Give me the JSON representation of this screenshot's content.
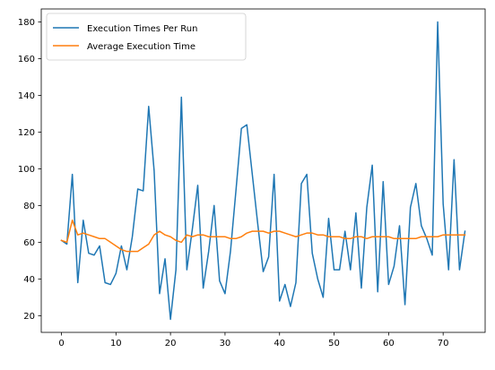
{
  "chart_data": {
    "type": "line",
    "title": "",
    "xlabel": "",
    "ylabel": "",
    "xlim": [
      -3.7,
      77.7
    ],
    "ylim": [
      10.9,
      187.1
    ],
    "xticks": [
      0,
      10,
      20,
      30,
      40,
      50,
      60,
      70
    ],
    "yticks": [
      20,
      40,
      60,
      80,
      100,
      120,
      140,
      160,
      180
    ],
    "grid": false,
    "legend": "top-left",
    "x": [
      0,
      1,
      2,
      3,
      4,
      5,
      6,
      7,
      8,
      9,
      10,
      11,
      12,
      13,
      14,
      15,
      16,
      17,
      18,
      19,
      20,
      21,
      22,
      23,
      24,
      25,
      26,
      27,
      28,
      29,
      30,
      31,
      32,
      33,
      34,
      35,
      36,
      37,
      38,
      39,
      40,
      41,
      42,
      43,
      44,
      45,
      46,
      47,
      48,
      49,
      50,
      51,
      52,
      53,
      54,
      55,
      56,
      57,
      58,
      59,
      60,
      61,
      62,
      63,
      64,
      65,
      66,
      67,
      68,
      69,
      70,
      71,
      72,
      73,
      74
    ],
    "series": [
      {
        "name": "Execution Times Per Run",
        "color": "#1f77b4",
        "values": [
          61,
          59,
          97,
          38,
          72,
          54,
          53,
          58,
          38,
          37,
          43,
          58,
          45,
          63,
          89,
          88,
          134,
          99,
          32,
          51,
          18,
          45,
          139,
          45,
          67,
          91,
          35,
          55,
          80,
          39,
          32,
          55,
          88,
          122,
          124,
          97,
          70,
          44,
          52,
          97,
          28,
          37,
          25,
          38,
          92,
          97,
          54,
          40,
          30,
          73,
          45,
          45,
          66,
          45,
          76,
          35,
          79,
          102,
          33,
          93,
          37,
          47,
          69,
          26,
          79,
          92,
          69,
          62,
          53,
          180,
          81,
          45,
          105,
          45,
          66
        ]
      },
      {
        "name": "Average Execution Time",
        "color": "#ff7f0e",
        "values": [
          61,
          60,
          72,
          64,
          65,
          64,
          63,
          62,
          62,
          60,
          58,
          56,
          55,
          55,
          55,
          57,
          59,
          64,
          66,
          64,
          63,
          61,
          60,
          64,
          63,
          64,
          64,
          63,
          63,
          63,
          63,
          62,
          62,
          63,
          65,
          66,
          66,
          66,
          65,
          66,
          66,
          65,
          64,
          63,
          64,
          65,
          65,
          64,
          64,
          63,
          63,
          63,
          62,
          62,
          63,
          63,
          62,
          63,
          63,
          63,
          63,
          62,
          62,
          62,
          62,
          62,
          63,
          63,
          63,
          63,
          64,
          64,
          64,
          64,
          64
        ]
      }
    ]
  }
}
